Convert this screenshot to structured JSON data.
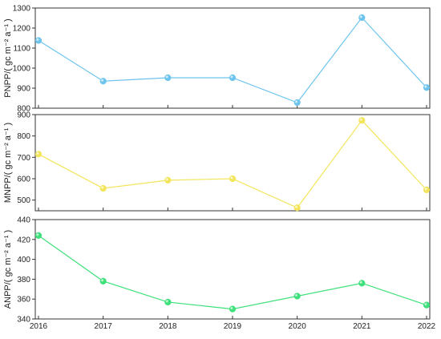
{
  "chart_data": [
    {
      "type": "line",
      "x": [
        "2016",
        "2017",
        "2018",
        "2019",
        "2020",
        "2021",
        "2022"
      ],
      "series": [
        {
          "values": [
            1138,
            935,
            952,
            952,
            828,
            1252,
            903
          ],
          "color": "#6cc4ee"
        }
      ],
      "ylabel": "PNPP/( gc m⁻² a⁻¹ )",
      "ylim": [
        800,
        1300
      ],
      "yticks": [
        "800",
        "900",
        "1000",
        "1100",
        "1200",
        "1300"
      ],
      "marker": "sphere"
    },
    {
      "type": "line",
      "x": [
        "2016",
        "2017",
        "2018",
        "2019",
        "2020",
        "2021",
        "2022"
      ],
      "series": [
        {
          "values": [
            715,
            555,
            593,
            600,
            464,
            873,
            548
          ],
          "color": "#f2e55a"
        }
      ],
      "ylabel": "MNPP/( gc m⁻² a⁻¹ )",
      "ylim": [
        450,
        900
      ],
      "yticks": [
        "500",
        "600",
        "700",
        "800",
        "900"
      ],
      "marker": "sphere"
    },
    {
      "type": "line",
      "x": [
        "2016",
        "2017",
        "2018",
        "2019",
        "2020",
        "2021",
        "2022"
      ],
      "series": [
        {
          "values": [
            424,
            378,
            357,
            350,
            363,
            376,
            354
          ],
          "color": "#3de07a"
        }
      ],
      "ylabel": "ANPP/( gc m⁻² a⁻¹ )",
      "ylim": [
        340,
        440
      ],
      "yticks": [
        "340",
        "360",
        "380",
        "400",
        "420",
        "440"
      ],
      "marker": "sphere"
    }
  ]
}
